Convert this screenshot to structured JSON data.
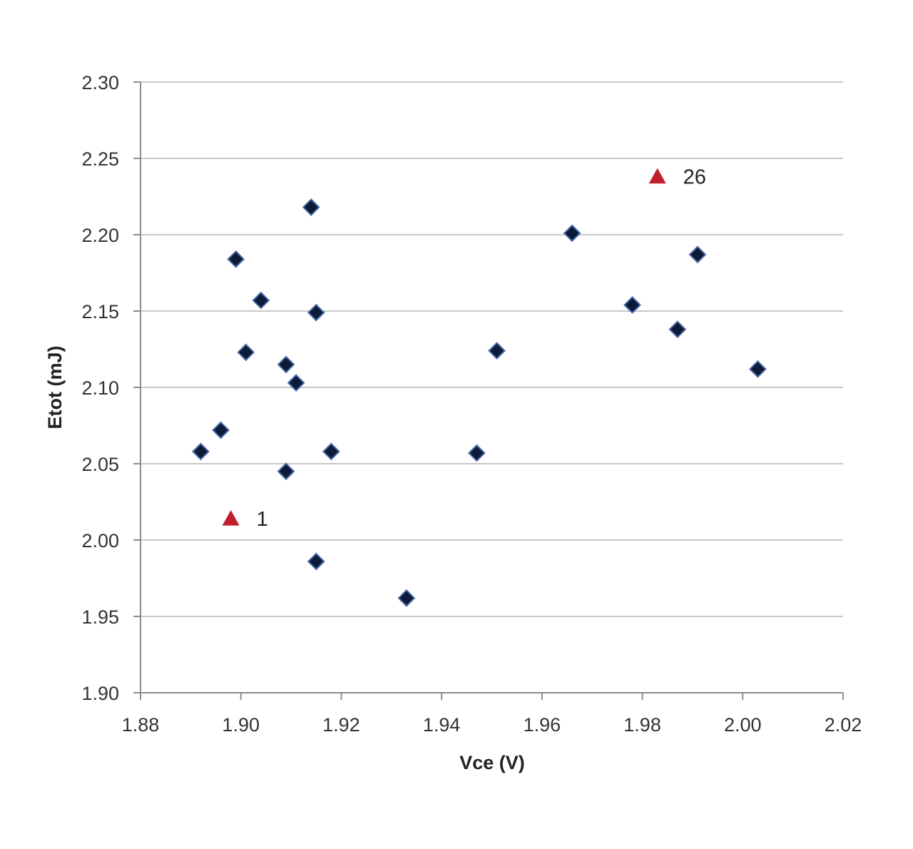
{
  "chart_data": {
    "type": "scatter",
    "xlabel": "Vce (V)",
    "ylabel": "Etot (mJ)",
    "xlim": [
      1.88,
      2.02
    ],
    "ylim": [
      1.9,
      2.3
    ],
    "x_ticks": [
      "1.88",
      "1.90",
      "1.92",
      "1.94",
      "1.96",
      "1.98",
      "2.00",
      "2.02"
    ],
    "y_ticks": [
      "1.90",
      "1.95",
      "2.00",
      "2.05",
      "2.10",
      "2.15",
      "2.20",
      "2.25",
      "2.30"
    ],
    "grid": "horizontal",
    "legend": "none",
    "series": [
      {
        "marker": "diamond",
        "color": "#0d1a38",
        "points": [
          {
            "x": 1.892,
            "y": 2.058
          },
          {
            "x": 1.896,
            "y": 2.072
          },
          {
            "x": 1.899,
            "y": 2.184
          },
          {
            "x": 1.901,
            "y": 2.123
          },
          {
            "x": 1.904,
            "y": 2.157
          },
          {
            "x": 1.909,
            "y": 2.045
          },
          {
            "x": 1.909,
            "y": 2.115
          },
          {
            "x": 1.911,
            "y": 2.103
          },
          {
            "x": 1.914,
            "y": 2.218
          },
          {
            "x": 1.915,
            "y": 2.149
          },
          {
            "x": 1.915,
            "y": 1.986
          },
          {
            "x": 1.918,
            "y": 2.058
          },
          {
            "x": 1.933,
            "y": 1.962
          },
          {
            "x": 1.947,
            "y": 2.057
          },
          {
            "x": 1.951,
            "y": 2.124
          },
          {
            "x": 1.966,
            "y": 2.201
          },
          {
            "x": 1.978,
            "y": 2.154
          },
          {
            "x": 1.987,
            "y": 2.138
          },
          {
            "x": 1.991,
            "y": 2.187
          },
          {
            "x": 2.003,
            "y": 2.112
          }
        ]
      },
      {
        "marker": "triangle",
        "color": "#c0202c",
        "points": [
          {
            "x": 1.898,
            "y": 2.014,
            "label": "1"
          },
          {
            "x": 1.983,
            "y": 2.238,
            "label": "26"
          }
        ]
      }
    ]
  }
}
